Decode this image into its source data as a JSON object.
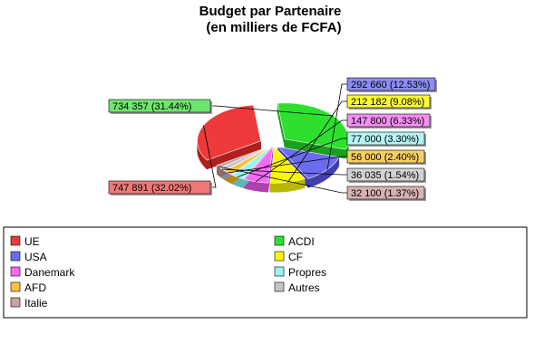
{
  "chart_data": {
    "type": "pie",
    "title": "Budget par Partenaire",
    "subtitle": "(en milliers de FCFA)",
    "slices": [
      {
        "name": "UE",
        "value": 747891,
        "label": "747 891 (32.02%)",
        "color": "#ee3a3a",
        "dark": "#b01e1e",
        "lightbox": "#f27878"
      },
      {
        "name": "ACDI",
        "value": 734357,
        "label": "734 357 (31.44%)",
        "color": "#2ee02e",
        "dark": "#1aa01a",
        "lightbox": "#6ee66e"
      },
      {
        "name": "USA",
        "value": 292660,
        "label": "292 660 (12.53%)",
        "color": "#6b6bf0",
        "dark": "#3f3fb0",
        "lightbox": "#8c8cf4"
      },
      {
        "name": "CF",
        "value": 212182,
        "label": "212 182 (9.08%)",
        "color": "#f8f800",
        "dark": "#b8b800",
        "lightbox": "#fafa33"
      },
      {
        "name": "Danemark",
        "value": 147800,
        "label": "147 800 (6.33%)",
        "color": "#f56bf5",
        "dark": "#b03fb0",
        "lightbox": "#f48ff4"
      },
      {
        "name": "Propres",
        "value": 77000,
        "label": "77 000 (3.30%)",
        "color": "#9af2f2",
        "dark": "#5fb5b5",
        "lightbox": "#b6f4f4"
      },
      {
        "name": "AFD",
        "value": 56000,
        "label": "56 000 (2.40%)",
        "color": "#f9c23c",
        "dark": "#b88a18",
        "lightbox": "#f8cf66"
      },
      {
        "name": "Autres",
        "value": 36035,
        "label": "36 035 (1.54%)",
        "color": "#c4c4c4",
        "dark": "#8a8a8a",
        "lightbox": "#d2d2d2"
      },
      {
        "name": "Italie",
        "value": 32100,
        "label": "32 100 (1.37%)",
        "color": "#c9a3a3",
        "dark": "#8d6c6c",
        "lightbox": "#d8b2b2"
      }
    ],
    "legend_placement": "bottom"
  }
}
